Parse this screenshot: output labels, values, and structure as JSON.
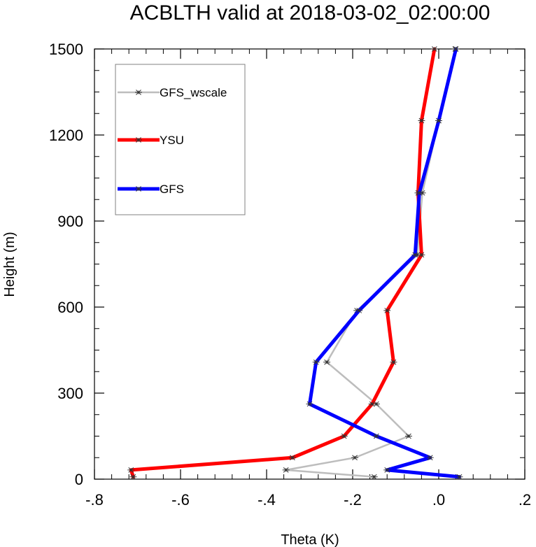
{
  "chart_data": {
    "type": "line",
    "title": "ACBLTH valid at 2018-03-02_02:00:00",
    "xlabel": "Theta (K)",
    "ylabel": "Height (m)",
    "xlim": [
      -0.8,
      0.2
    ],
    "ylim": [
      0,
      1500
    ],
    "x_ticks": [
      -0.8,
      -0.6,
      -0.4,
      -0.2,
      0.0,
      0.2
    ],
    "x_tick_labels": [
      "-.8",
      "-.6",
      "-.4",
      "-.2",
      ".0",
      ".2"
    ],
    "y_ticks": [
      0,
      300,
      600,
      900,
      1200,
      1500
    ],
    "y_tick_labels": [
      "0",
      "300",
      "600",
      "900",
      "1200",
      "1500"
    ],
    "grid": false,
    "legend_position": "top-left",
    "series": [
      {
        "name": "GFS_wscale",
        "color": "#bdbdbd",
        "line_width": 2.5,
        "marker": "asterisk",
        "points": [
          {
            "x": -0.15,
            "y": 8
          },
          {
            "x": -0.355,
            "y": 32
          },
          {
            "x": -0.195,
            "y": 75
          },
          {
            "x": -0.07,
            "y": 150
          },
          {
            "x": -0.145,
            "y": 262
          },
          {
            "x": -0.26,
            "y": 408
          },
          {
            "x": -0.19,
            "y": 588
          },
          {
            "x": -0.05,
            "y": 782
          },
          {
            "x": -0.038,
            "y": 998
          },
          {
            "x": 0.0,
            "y": 1250
          },
          {
            "x": 0.038,
            "y": 1500
          }
        ]
      },
      {
        "name": "YSU",
        "color": "#ff0000",
        "line_width": 5,
        "marker": "asterisk",
        "points": [
          {
            "x": -0.71,
            "y": 8
          },
          {
            "x": -0.715,
            "y": 32
          },
          {
            "x": -0.34,
            "y": 75
          },
          {
            "x": -0.22,
            "y": 150
          },
          {
            "x": -0.155,
            "y": 262
          },
          {
            "x": -0.105,
            "y": 408
          },
          {
            "x": -0.12,
            "y": 588
          },
          {
            "x": -0.04,
            "y": 782
          },
          {
            "x": -0.048,
            "y": 998
          },
          {
            "x": -0.04,
            "y": 1250
          },
          {
            "x": -0.01,
            "y": 1500
          }
        ]
      },
      {
        "name": "GFS",
        "color": "#0000ff",
        "line_width": 5,
        "marker": "asterisk",
        "points": [
          {
            "x": 0.048,
            "y": 8
          },
          {
            "x": -0.12,
            "y": 32
          },
          {
            "x": -0.02,
            "y": 75
          },
          {
            "x": -0.145,
            "y": 150
          },
          {
            "x": -0.3,
            "y": 262
          },
          {
            "x": -0.285,
            "y": 408
          },
          {
            "x": -0.185,
            "y": 588
          },
          {
            "x": -0.055,
            "y": 782
          },
          {
            "x": -0.045,
            "y": 998
          },
          {
            "x": 0.0,
            "y": 1250
          },
          {
            "x": 0.04,
            "y": 1500
          }
        ]
      }
    ]
  }
}
